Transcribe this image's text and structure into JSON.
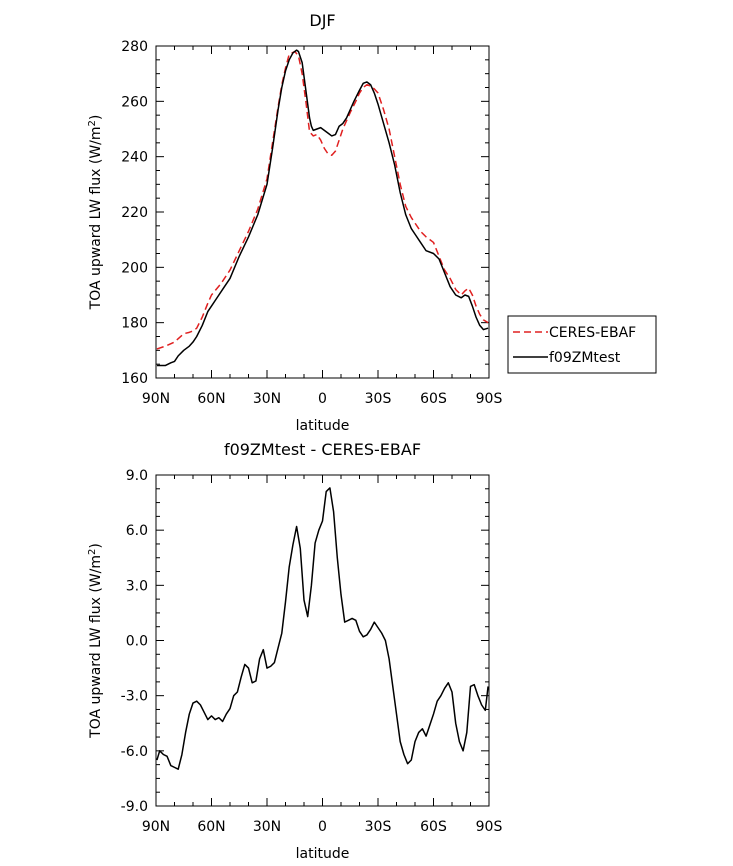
{
  "chart_data": [
    {
      "type": "line",
      "title": "DJF",
      "xlabel": "latitude",
      "ylabel_main": "TOA upward LW flux (W/m",
      "ylabel_sup": "2",
      "ylabel_close": ")",
      "xlim": [
        90,
        -90
      ],
      "ylim": [
        160,
        280
      ],
      "x_ticks": [
        90,
        60,
        30,
        0,
        -30,
        -60,
        -90
      ],
      "x_tick_labels": [
        "90N",
        "60N",
        "30N",
        "0",
        "30S",
        "60S",
        "90S"
      ],
      "y_ticks": [
        160,
        180,
        200,
        220,
        240,
        260,
        280
      ],
      "y_tick_labels": [
        "160",
        "180",
        "200",
        "220",
        "240",
        "260",
        "280"
      ],
      "legend_position": "right",
      "series": [
        {
          "name": "CERES-EBAF",
          "color": "#e02020",
          "dash": "dashed",
          "x": [
            89.5,
            85,
            80,
            75,
            72,
            70,
            68,
            65,
            62,
            60,
            55,
            50,
            45,
            40,
            35,
            30,
            27,
            24,
            22,
            20,
            18,
            15,
            13,
            11,
            9,
            7,
            5,
            3,
            1,
            -1,
            -3,
            -5,
            -7,
            -9,
            -11,
            -13,
            -15,
            -18,
            -20,
            -22,
            -24,
            -26,
            -28,
            -30,
            -33,
            -36,
            -39,
            -42,
            -45,
            -48,
            -50,
            -53,
            -56,
            -60,
            -63,
            -66,
            -69,
            -72,
            -75,
            -77,
            -79,
            -81,
            -83,
            -85,
            -87,
            -89.5
          ],
          "values": [
            170.5,
            171.5,
            173,
            176,
            176.5,
            177,
            178,
            182,
            187,
            190,
            194,
            199,
            206,
            213,
            221,
            232,
            245,
            258,
            266,
            272,
            277,
            278,
            276.5,
            270,
            260,
            249,
            247.5,
            248,
            246,
            243,
            241,
            240.5,
            242,
            246,
            250,
            253,
            256,
            260,
            263,
            265,
            266,
            265.5,
            264.5,
            263,
            257,
            250,
            240,
            230,
            222,
            218,
            216,
            213,
            211,
            209,
            204,
            199,
            196,
            192,
            190,
            191.5,
            192.5,
            190,
            186,
            183,
            181,
            180
          ]
        },
        {
          "name": "f09ZMtest",
          "color": "#000000",
          "dash": "solid",
          "x": [
            89.5,
            85,
            82,
            80,
            78,
            75,
            72,
            70,
            68,
            65,
            62,
            60,
            57,
            54,
            50,
            45,
            40,
            35,
            30,
            27,
            24,
            22,
            20,
            18,
            16,
            14,
            13,
            11,
            9,
            7,
            6,
            5,
            3,
            1,
            -1,
            -3,
            -5,
            -7,
            -9,
            -11,
            -13,
            -15,
            -17,
            -20,
            -22,
            -24,
            -26,
            -28,
            -30,
            -33,
            -36,
            -39,
            -42,
            -45,
            -48,
            -50,
            -53,
            -56,
            -60,
            -63,
            -66,
            -69,
            -72,
            -75,
            -77,
            -79,
            -81,
            -83,
            -85,
            -87,
            -89.5
          ],
          "values": [
            164.5,
            164.5,
            165.5,
            166,
            168,
            170,
            171.5,
            173,
            175,
            179,
            184,
            186,
            189,
            192,
            196,
            204,
            211,
            219,
            230,
            243,
            257,
            265,
            271,
            275,
            277.5,
            278.5,
            278,
            274,
            264,
            254,
            251,
            249.5,
            250,
            250.5,
            249.5,
            248.5,
            247.5,
            248,
            251,
            252,
            254,
            257,
            260,
            264,
            266.5,
            267,
            266,
            263,
            259,
            252,
            245,
            237,
            227,
            219,
            214,
            212,
            209,
            206,
            205,
            203,
            198,
            193,
            190,
            189,
            190,
            189.5,
            186,
            182,
            179,
            177.5,
            178
          ]
        }
      ]
    },
    {
      "type": "line",
      "title": "f09ZMtest - CERES-EBAF",
      "xlabel": "latitude",
      "ylabel_main": "TOA upward LW flux (W/m",
      "ylabel_sup": "2",
      "ylabel_close": ")",
      "xlim": [
        90,
        -90
      ],
      "ylim": [
        -9,
        9
      ],
      "x_ticks": [
        90,
        60,
        30,
        0,
        -30,
        -60,
        -90
      ],
      "x_tick_labels": [
        "90N",
        "60N",
        "30N",
        "0",
        "30S",
        "60S",
        "90S"
      ],
      "y_ticks": [
        -9,
        -6,
        -3,
        0,
        3,
        6,
        9
      ],
      "y_tick_labels": [
        "-9.0",
        "-6.0",
        "-3.0",
        "0.0",
        "3.0",
        "6.0",
        "9.0"
      ],
      "series": [
        {
          "name": "f09ZMtest - CERES-EBAF",
          "color": "#000000",
          "dash": "solid",
          "x": [
            89.5,
            88,
            86,
            84,
            82,
            80,
            78,
            76,
            74,
            72,
            70,
            68,
            66,
            64,
            62,
            60,
            58,
            56,
            54,
            52,
            50,
            48,
            46,
            44,
            42,
            40,
            38,
            36,
            34,
            32,
            30,
            28,
            26,
            24,
            22,
            20,
            18,
            16,
            14,
            12,
            10,
            8,
            6,
            4,
            2,
            0,
            -2,
            -4,
            -6,
            -8,
            -10,
            -12,
            -14,
            -16,
            -18,
            -20,
            -22,
            -24,
            -26,
            -28,
            -30,
            -32,
            -34,
            -36,
            -38,
            -40,
            -42,
            -44,
            -46,
            -48,
            -50,
            -52,
            -54,
            -56,
            -58,
            -60,
            -62,
            -64,
            -66,
            -68,
            -70,
            -72,
            -74,
            -76,
            -78,
            -80,
            -82,
            -84,
            -86,
            -88,
            -89.5
          ],
          "values": [
            -6.5,
            -6.0,
            -6.2,
            -6.3,
            -6.8,
            -6.9,
            -7.0,
            -6.2,
            -5.0,
            -4.0,
            -3.4,
            -3.3,
            -3.5,
            -3.9,
            -4.3,
            -4.1,
            -4.3,
            -4.2,
            -4.4,
            -4.0,
            -3.7,
            -3.0,
            -2.8,
            -2.0,
            -1.3,
            -1.5,
            -2.3,
            -2.2,
            -1.0,
            -0.5,
            -1.5,
            -1.4,
            -1.2,
            -0.4,
            0.4,
            2.1,
            4.0,
            5.2,
            6.2,
            5.0,
            2.2,
            1.3,
            3.0,
            5.3,
            6.0,
            6.5,
            8.1,
            8.3,
            7.0,
            4.5,
            2.5,
            1.0,
            1.1,
            1.2,
            1.1,
            0.5,
            0.2,
            0.3,
            0.6,
            1.0,
            0.7,
            0.4,
            0.0,
            -1.0,
            -2.5,
            -4.0,
            -5.5,
            -6.2,
            -6.7,
            -6.5,
            -5.5,
            -5.0,
            -4.8,
            -5.2,
            -4.6,
            -4.0,
            -3.3,
            -3.0,
            -2.6,
            -2.3,
            -2.8,
            -4.5,
            -5.5,
            -6.0,
            -5.0,
            -2.5,
            -2.4,
            -3.0,
            -3.5,
            -3.8,
            -2.5
          ]
        }
      ]
    }
  ]
}
